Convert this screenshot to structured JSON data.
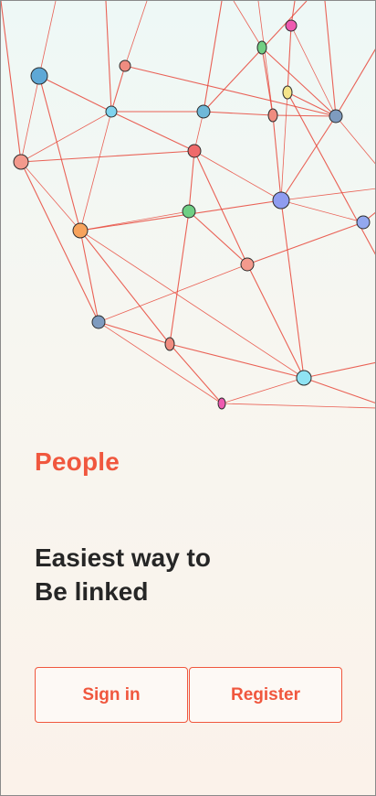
{
  "app": {
    "name": "People"
  },
  "headline": {
    "line1": "Easiest way to",
    "line2": "Be linked"
  },
  "actions": {
    "sign_in_label": "Sign in",
    "register_label": "Register"
  },
  "colors": {
    "accent": "#f0573e",
    "text": "#262626",
    "edge": "#e8473a"
  }
}
